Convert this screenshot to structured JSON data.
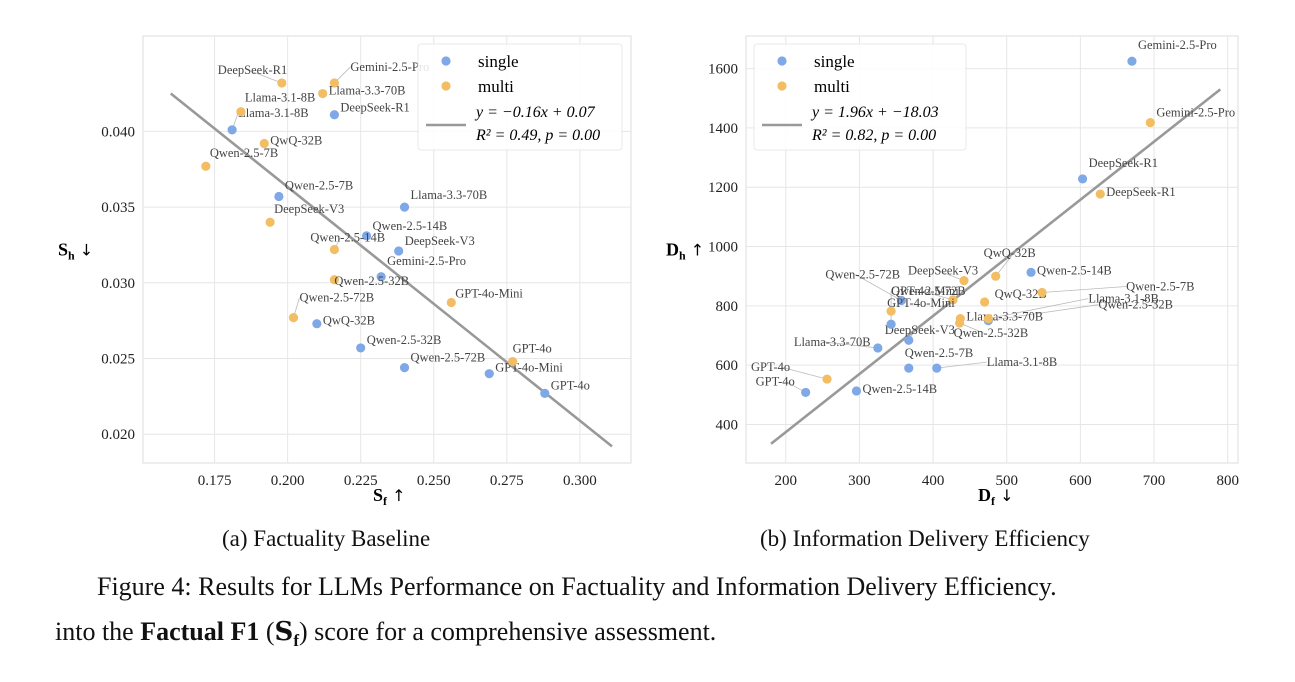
{
  "colors": {
    "single": "#7fa8e6",
    "multi": "#f2bd63",
    "fit": "#999999",
    "grid": "#e6e6e6",
    "label": "#444444",
    "leader": "#bbbbbb"
  },
  "figure_caption": "Figure 4: Results for LLMs Performance on Factuality and Information Delivery Efficiency.",
  "body_text": {
    "prefix": "into the ",
    "bold": "Factual F1",
    "paren_open": " (",
    "symbol": "S",
    "symbol_sub": "f",
    "suffix": ") score for a comprehensive assessment."
  },
  "chart_data": [
    {
      "type": "scatter",
      "caption": "(a) Factuality Baseline",
      "xlabel": "S",
      "xlabel_sub": "f",
      "xlabel_arrow": "↑",
      "ylabel": "S",
      "ylabel_sub": "h",
      "ylabel_arrow": "↓",
      "xlim": [
        0.1505,
        0.3175
      ],
      "ylim": [
        0.0181,
        0.0463
      ],
      "xticks": [
        0.175,
        0.2,
        0.225,
        0.25,
        0.275,
        0.3
      ],
      "xtick_labels": [
        "0.175",
        "0.200",
        "0.225",
        "0.250",
        "0.275",
        "0.300"
      ],
      "yticks": [
        0.02,
        0.025,
        0.03,
        0.035,
        0.04
      ],
      "ytick_labels": [
        "0.020",
        "0.025",
        "0.030",
        "0.035",
        "0.040"
      ],
      "grid": true,
      "legend_position": "top-right",
      "legend": {
        "single": "single",
        "multi": "multi",
        "fit_eq": "y = −0.16x + 0.07",
        "fit_r2": "R² = 0.49, p = 0.00"
      },
      "fit": {
        "slope": -0.16,
        "intercept": 0.07,
        "x_range": [
          0.16,
          0.311
        ],
        "y_range": [
          0.0425,
          0.0192
        ]
      },
      "series": [
        {
          "name": "single",
          "points": [
            {
              "label": "Llama-3.1-8B",
              "x": 0.181,
              "y": 0.0401,
              "lx": 0.0,
              "ly": 1
            },
            {
              "label": "DeepSeek-R1",
              "x": 0.216,
              "y": 0.0411,
              "lx": 1,
              "ly": 0
            },
            {
              "label": "Qwen-2.5-7B",
              "x": 0.197,
              "y": 0.0357,
              "lx": 1,
              "ly": 0
            },
            {
              "label": "Llama-3.3-70B",
              "x": 0.24,
              "y": 0.035,
              "lx": 1,
              "ly": 0
            },
            {
              "label": "Qwen-2.5-14B",
              "x": 0.227,
              "y": 0.0331,
              "lx": 1,
              "ly": 0
            },
            {
              "label": "DeepSeek-V3",
              "x": 0.238,
              "y": 0.0321,
              "lx": 1,
              "ly": 0
            },
            {
              "label": "Gemini-2.5-Pro",
              "x": 0.232,
              "y": 0.0304,
              "lx": 1,
              "ly": 0
            },
            {
              "label": "QwQ-32B",
              "x": 0.21,
              "y": 0.0273,
              "lx": 1,
              "ly": 0
            },
            {
              "label": "Qwen-2.5-32B",
              "x": 0.225,
              "y": 0.0257,
              "lx": 1,
              "ly": 0
            },
            {
              "label": "Qwen-2.5-72B",
              "x": 0.24,
              "y": 0.0244,
              "lx": 1,
              "ly": 0
            },
            {
              "label": "GPT-4o-Mini",
              "x": 0.269,
              "y": 0.024,
              "lx": 1,
              "ly": 0
            },
            {
              "label": "GPT-4o",
              "x": 0.288,
              "y": 0.0227,
              "lx": 1,
              "ly": 0
            }
          ]
        },
        {
          "name": "multi",
          "points": [
            {
              "label": "DeepSeek-R1",
              "x": 0.198,
              "y": 0.0432
            },
            {
              "label": "Gemini-2.5-Pro",
              "x": 0.216,
              "y": 0.0432
            },
            {
              "label": "Llama-3.3-70B",
              "x": 0.212,
              "y": 0.0425
            },
            {
              "label": "Llama-3.1-8B",
              "x": 0.184,
              "y": 0.0413
            },
            {
              "label": "QwQ-32B",
              "x": 0.192,
              "y": 0.0392
            },
            {
              "label": "Qwen-2.5-7B",
              "x": 0.172,
              "y": 0.0377
            },
            {
              "label": "DeepSeek-V3",
              "x": 0.194,
              "y": 0.034
            },
            {
              "label": "Qwen-2.5-14B",
              "x": 0.216,
              "y": 0.0322
            },
            {
              "label": "Qwen-2.5-32B",
              "x": 0.216,
              "y": 0.0302
            },
            {
              "label": "GPT-4o-Mini",
              "x": 0.256,
              "y": 0.0287
            },
            {
              "label": "Qwen-2.5-72B",
              "x": 0.202,
              "y": 0.0277
            },
            {
              "label": "GPT-4o",
              "x": 0.277,
              "y": 0.0248
            }
          ]
        }
      ]
    },
    {
      "type": "scatter",
      "caption": "(b) Information Delivery Efficiency",
      "xlabel": "D",
      "xlabel_sub": "f",
      "xlabel_arrow": "↓",
      "ylabel": "D",
      "ylabel_sub": "h",
      "ylabel_arrow": "↑",
      "xlim": [
        146,
        814
      ],
      "ylim": [
        270,
        1710
      ],
      "xticks": [
        200,
        300,
        400,
        500,
        600,
        700,
        800
      ],
      "xtick_labels": [
        "200",
        "300",
        "400",
        "500",
        "600",
        "700",
        "800"
      ],
      "yticks": [
        400,
        600,
        800,
        1000,
        1200,
        1400,
        1600
      ],
      "ytick_labels": [
        "400",
        "600",
        "800",
        "1000",
        "1200",
        "1400",
        "1600"
      ],
      "grid": true,
      "legend_position": "top-left",
      "legend": {
        "single": "single",
        "multi": "multi",
        "fit_eq": "y = 1.96x + −18.03",
        "fit_r2": "R² = 0.82, p = 0.00"
      },
      "fit": {
        "slope": 1.96,
        "intercept": -18.03,
        "x_range": [
          180,
          790
        ],
        "y_range": [
          335,
          1530
        ]
      },
      "series": [
        {
          "name": "single",
          "points": [
            {
              "label": "Gemini-2.5-Pro",
              "x": 670,
              "y": 1625
            },
            {
              "label": "DeepSeek-R1",
              "x": 603,
              "y": 1228
            },
            {
              "label": "Qwen-2.5-14B",
              "x": 533,
              "y": 913
            },
            {
              "label": "Qwen-2.5-72B",
              "x": 357,
              "y": 818
            },
            {
              "label": "DeepSeek-V3",
              "x": 367,
              "y": 684
            },
            {
              "label": "Llama-3.3-70B",
              "x": 325,
              "y": 658
            },
            {
              "label": "GPT-4o-Mini",
              "x": 343,
              "y": 738
            },
            {
              "label": "Qwen-2.5-7B",
              "x": 367,
              "y": 590
            },
            {
              "label": "Llama-3.1-8B",
              "x": 405,
              "y": 590
            },
            {
              "label": "Qwen-2.5-32B",
              "x": 475,
              "y": 750
            },
            {
              "label": "GPT-4o",
              "x": 227,
              "y": 508
            },
            {
              "label": "Qwen-2.5-14B",
              "x": 296,
              "y": 513
            }
          ]
        },
        {
          "name": "multi",
          "points": [
            {
              "label": "Gemini-2.5-Pro",
              "x": 695,
              "y": 1418
            },
            {
              "label": "DeepSeek-R1",
              "x": 627,
              "y": 1177
            },
            {
              "label": "QwQ-32B",
              "x": 485,
              "y": 900
            },
            {
              "label": "DeepSeek-V3",
              "x": 442,
              "y": 885
            },
            {
              "label": "Qwen-2.5-72B",
              "x": 427,
              "y": 820
            },
            {
              "label": "QwQ-32B",
              "x": 470,
              "y": 813
            },
            {
              "label": "Qwen-2.5-7B",
              "x": 548,
              "y": 845
            },
            {
              "label": "GPT-4o-Mini",
              "x": 343,
              "y": 782
            },
            {
              "label": "Llama-3.3-70B",
              "x": 437,
              "y": 757
            },
            {
              "label": "Llama-3.1-8B",
              "x": 475,
              "y": 757
            },
            {
              "label": "Qwen-2.5-32B",
              "x": 436,
              "y": 742
            },
            {
              "label": "GPT-4o",
              "x": 256,
              "y": 553
            }
          ]
        }
      ]
    }
  ]
}
